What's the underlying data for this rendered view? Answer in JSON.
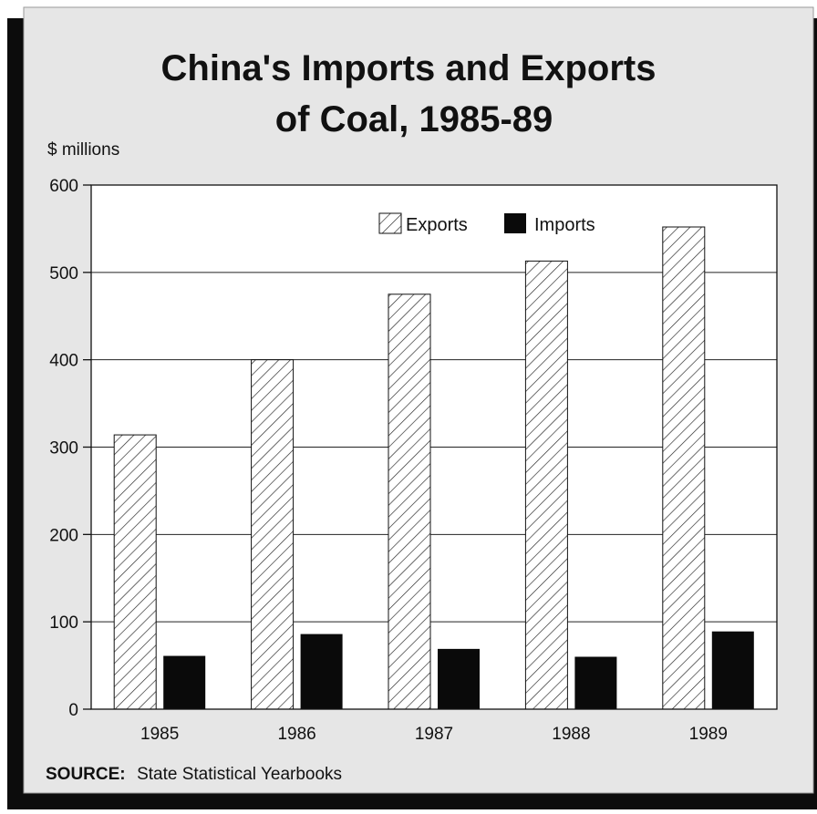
{
  "chart_data": {
    "type": "bar",
    "title_line1": "China's Imports and Exports",
    "title_line2": "of Coal, 1985-89",
    "ylabel": "$ millions",
    "xlabel": "",
    "ylim": [
      0,
      600
    ],
    "yticks": [
      0,
      100,
      200,
      300,
      400,
      500,
      600
    ],
    "categories": [
      "1985",
      "1986",
      "1987",
      "1988",
      "1989"
    ],
    "series": [
      {
        "name": "Exports",
        "values": [
          314,
          400,
          475,
          513,
          552
        ],
        "fill": "hatched"
      },
      {
        "name": "Imports",
        "values": [
          61,
          86,
          69,
          60,
          89
        ],
        "fill": "#0a0a0a"
      }
    ],
    "grid": true,
    "legend_position": "top-right",
    "source_label": "SOURCE:",
    "source_text": "State Statistical Yearbooks"
  },
  "colors": {
    "background": "#e6e6e6",
    "shadow": "#0c0c0c",
    "plot_area": "#ffffff",
    "imports": "#0a0a0a"
  }
}
